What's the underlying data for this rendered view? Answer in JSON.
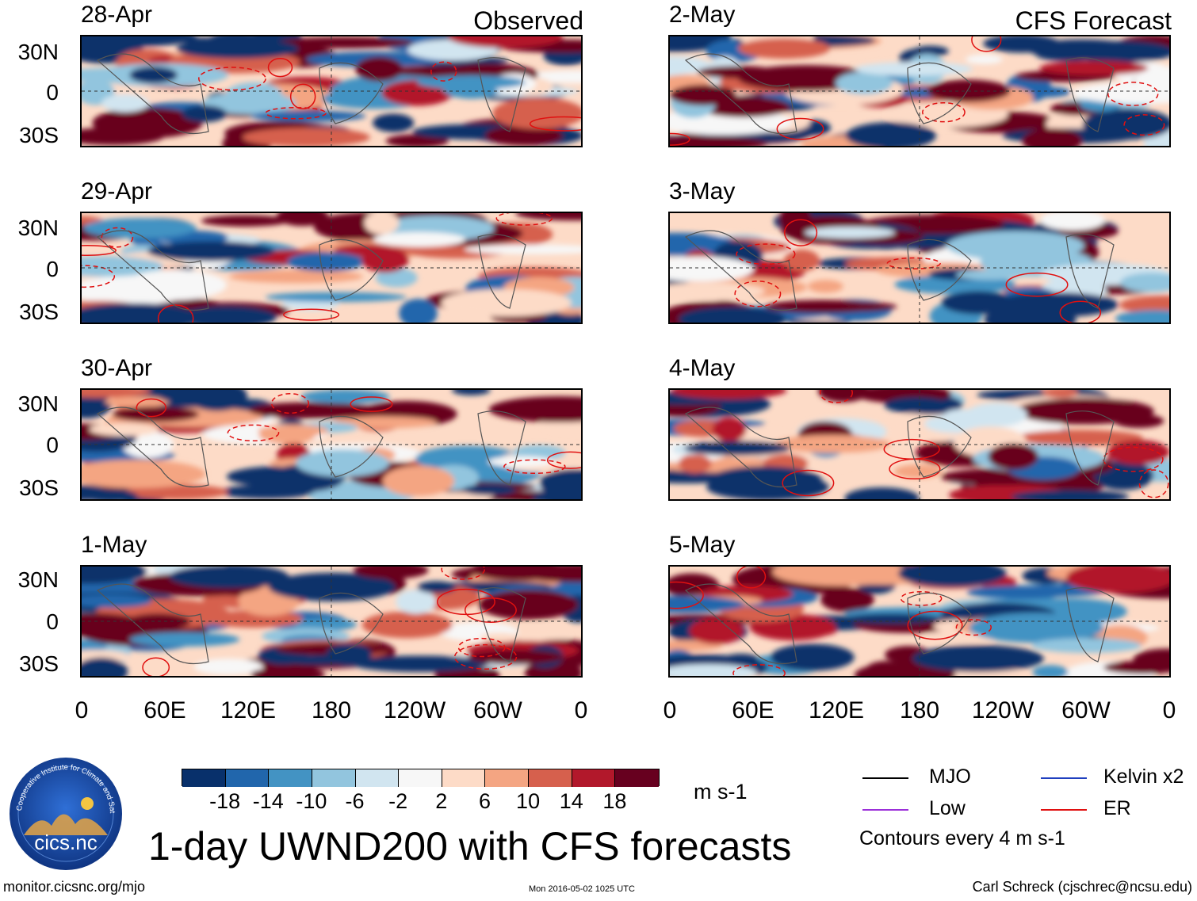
{
  "header": {
    "left_title": "Observed",
    "right_title": "CFS Forecast"
  },
  "observed_panels": [
    {
      "date": "28-Apr"
    },
    {
      "date": "29-Apr"
    },
    {
      "date": "30-Apr"
    },
    {
      "date": "1-May"
    }
  ],
  "forecast_panels": [
    {
      "date": "2-May"
    },
    {
      "date": "3-May"
    },
    {
      "date": "4-May"
    },
    {
      "date": "5-May"
    }
  ],
  "lat_labels": [
    "30N",
    "0",
    "30S"
  ],
  "lon_labels": [
    "0",
    "60E",
    "120E",
    "180",
    "120W",
    "60W",
    "0"
  ],
  "colorbar": {
    "colors": [
      "#08306b",
      "#2166ac",
      "#4393c3",
      "#92c5de",
      "#d1e5f0",
      "#f7f7f7",
      "#fddbc7",
      "#f4a582",
      "#d6604d",
      "#b2182b",
      "#67001f"
    ],
    "ticks": [
      "-18",
      "-14",
      "-10",
      "-6",
      "-2",
      "2",
      "6",
      "10",
      "14",
      "18"
    ],
    "units": "m s-1"
  },
  "legend": {
    "items": [
      {
        "label": "MJO",
        "color": "#000000"
      },
      {
        "label": "Kelvin x2",
        "color": "#1f3fbf"
      },
      {
        "label": "Low",
        "color": "#9b30d9"
      },
      {
        "label": "ER",
        "color": "#e01010"
      }
    ],
    "note": "Contours every 4 m s-1"
  },
  "logo_text": {
    "name": "cics.nc",
    "ring": "Cooperative Institute for Climate and Satellites"
  },
  "main_title": "1-day UWND200 with CFS forecasts",
  "footer": {
    "url": "monitor.cicsnc.org/mjo",
    "timestamp": "Mon 2016-05-02 1025 UTC",
    "author": "Carl Schreck (cjschrec@ncsu.edu)"
  }
}
